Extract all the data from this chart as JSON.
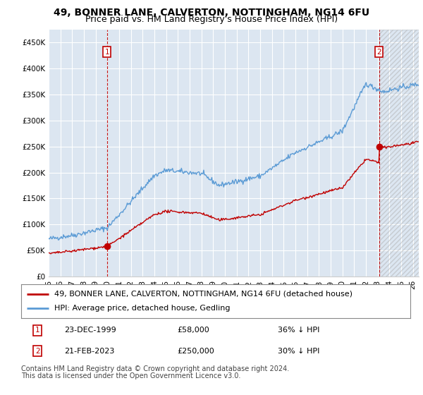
{
  "title": "49, BONNER LANE, CALVERTON, NOTTINGHAM, NG14 6FU",
  "subtitle": "Price paid vs. HM Land Registry's House Price Index (HPI)",
  "ylabel_ticks": [
    "£0",
    "£50K",
    "£100K",
    "£150K",
    "£200K",
    "£250K",
    "£300K",
    "£350K",
    "£400K",
    "£450K"
  ],
  "ytick_values": [
    0,
    50000,
    100000,
    150000,
    200000,
    250000,
    300000,
    350000,
    400000,
    450000
  ],
  "ylim": [
    0,
    475000
  ],
  "xlim_start": 1995.0,
  "xlim_end": 2026.5,
  "xtick_years": [
    1995,
    1996,
    1997,
    1998,
    1999,
    2000,
    2001,
    2002,
    2003,
    2004,
    2005,
    2006,
    2007,
    2008,
    2009,
    2010,
    2011,
    2012,
    2013,
    2014,
    2015,
    2016,
    2017,
    2018,
    2019,
    2020,
    2021,
    2022,
    2023,
    2024,
    2025,
    2026
  ],
  "hpi_color": "#5b9bd5",
  "price_color": "#c00000",
  "marker_color": "#c00000",
  "plot_bg_color": "#dce6f1",
  "background_color": "#ffffff",
  "grid_color": "#ffffff",
  "hatch_color": "#c0c0c0",
  "purchase1": {
    "year": 1999.97,
    "price": 58000,
    "label": "1"
  },
  "purchase2": {
    "year": 2023.13,
    "price": 250000,
    "label": "2"
  },
  "legend_property": "49, BONNER LANE, CALVERTON, NOTTINGHAM, NG14 6FU (detached house)",
  "legend_hpi": "HPI: Average price, detached house, Gedling",
  "footer1": "Contains HM Land Registry data © Crown copyright and database right 2024.",
  "footer2": "This data is licensed under the Open Government Licence v3.0.",
  "table_rows": [
    {
      "num": "1",
      "date": "23-DEC-1999",
      "price": "£58,000",
      "hpi": "36% ↓ HPI"
    },
    {
      "num": "2",
      "date": "21-FEB-2023",
      "price": "£250,000",
      "hpi": "30% ↓ HPI"
    }
  ],
  "title_fontsize": 10,
  "subtitle_fontsize": 9,
  "tick_fontsize": 7.5,
  "legend_fontsize": 8,
  "footer_fontsize": 7
}
